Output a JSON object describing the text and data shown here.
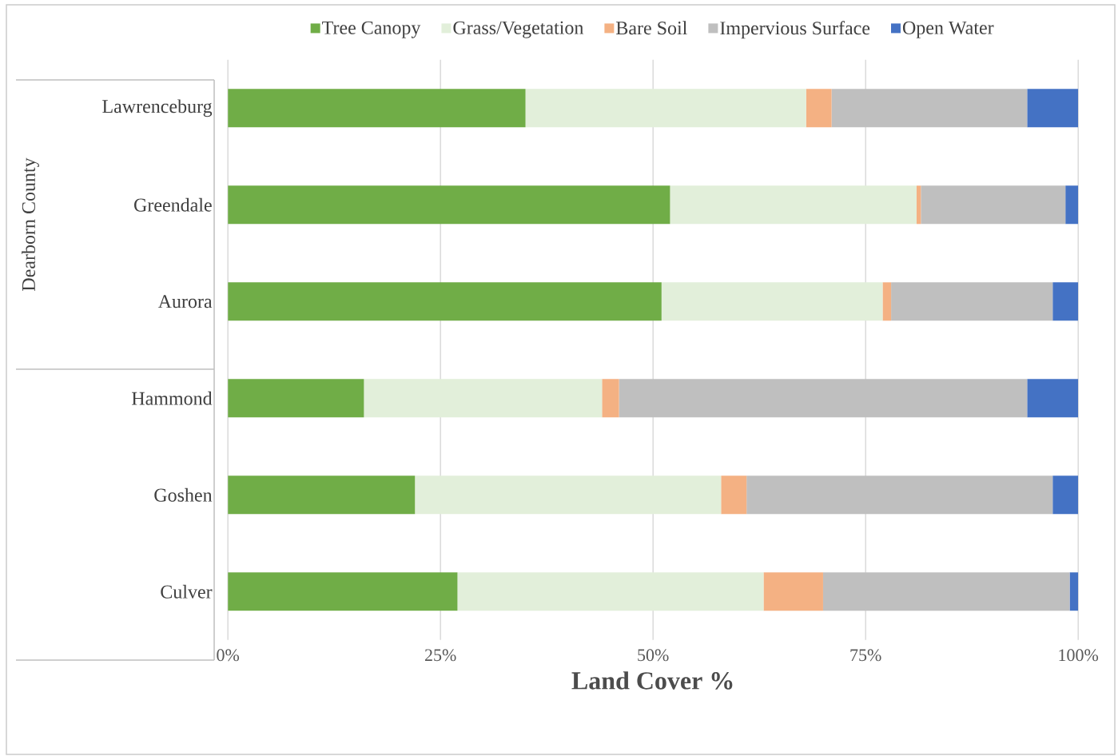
{
  "chart_data": {
    "type": "bar",
    "orientation": "horizontal",
    "stacked": true,
    "xlabel": "Land Cover %",
    "categories": [
      "Lawrenceburg",
      "Greendale",
      "Aurora",
      "Hammond",
      "Goshen",
      "Culver"
    ],
    "series": [
      {
        "name": "Tree Canopy",
        "color": "#70ad47",
        "values": [
          35,
          52,
          51,
          16,
          22,
          27
        ]
      },
      {
        "name": "Grass/Vegetation",
        "color": "#e2efda",
        "values": [
          33,
          29,
          26,
          28,
          36,
          36
        ]
      },
      {
        "name": "Bare Soil",
        "color": "#f4b183",
        "values": [
          3,
          0.5,
          1,
          2,
          3,
          7
        ]
      },
      {
        "name": "Impervious Surface",
        "color": "#bfbfbf",
        "values": [
          23,
          17,
          19,
          48,
          36,
          29
        ]
      },
      {
        "name": "Open Water",
        "color": "#4472c4",
        "values": [
          6,
          1.5,
          3,
          6,
          3,
          1
        ]
      }
    ],
    "xlim": [
      0,
      100
    ],
    "xticks": [
      {
        "value": 0,
        "label": "0%"
      },
      {
        "value": 25,
        "label": "25%"
      },
      {
        "value": 50,
        "label": "50%"
      },
      {
        "value": 75,
        "label": "75%"
      },
      {
        "value": 100,
        "label": "100%"
      }
    ],
    "annotations": [
      "Dearborn County"
    ],
    "grid": "x",
    "legend": "top"
  }
}
